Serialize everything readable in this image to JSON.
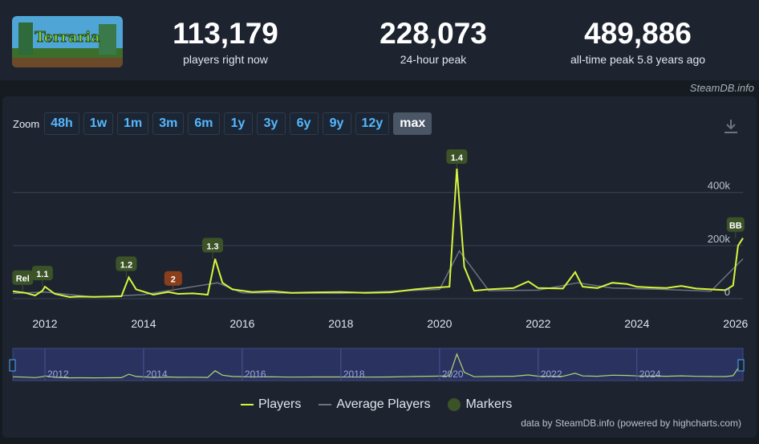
{
  "stats": [
    {
      "value": "113,179",
      "label": "players right now"
    },
    {
      "value": "228,073",
      "label": "24-hour peak"
    },
    {
      "value": "489,886",
      "label": "all-time peak 5.8 years ago"
    }
  ],
  "logo_text": "Terraria",
  "credit_top": "SteamDB.info",
  "zoom": {
    "label": "Zoom",
    "options": [
      "48h",
      "1w",
      "1m",
      "3m",
      "6m",
      "1y",
      "3y",
      "6y",
      "9y",
      "12y",
      "max"
    ],
    "active": "max"
  },
  "icons": {
    "download": "download-icon"
  },
  "colors": {
    "players": "#d7f53c",
    "average": "#6b7480",
    "marker": "#3c5327",
    "marker_alt": "#8a3f1a",
    "navigator_bg": "#2a3360"
  },
  "legend": [
    "Players",
    "Average Players",
    "Markers"
  ],
  "credit_bottom": "data by SteamDB.info (powered by highcharts.com)",
  "chart_data": {
    "type": "line",
    "x_ticks": [
      "2012",
      "2014",
      "2016",
      "2018",
      "2020",
      "2022",
      "2024",
      "2026"
    ],
    "y_ticks": [
      "0",
      "200k",
      "400k"
    ],
    "ylim": [
      0,
      489886
    ],
    "xlim": [
      2011.35,
      2026.15
    ],
    "series": [
      {
        "name": "Players",
        "points": [
          [
            2011.35,
            28000
          ],
          [
            2011.6,
            22000
          ],
          [
            2011.8,
            12000
          ],
          [
            2011.95,
            30000
          ],
          [
            2012.0,
            45000
          ],
          [
            2012.2,
            18000
          ],
          [
            2012.5,
            6000
          ],
          [
            2012.7,
            8000
          ],
          [
            2013.0,
            7000
          ],
          [
            2013.3,
            8000
          ],
          [
            2013.55,
            9000
          ],
          [
            2013.7,
            80000
          ],
          [
            2013.85,
            35000
          ],
          [
            2014.2,
            15000
          ],
          [
            2014.5,
            25000
          ],
          [
            2014.7,
            18000
          ],
          [
            2015.0,
            20000
          ],
          [
            2015.3,
            15000
          ],
          [
            2015.45,
            150000
          ],
          [
            2015.6,
            60000
          ],
          [
            2015.8,
            35000
          ],
          [
            2016.2,
            25000
          ],
          [
            2016.6,
            28000
          ],
          [
            2017.0,
            22000
          ],
          [
            2017.5,
            24000
          ],
          [
            2018.0,
            25000
          ],
          [
            2018.5,
            22000
          ],
          [
            2019.0,
            24000
          ],
          [
            2019.5,
            35000
          ],
          [
            2019.8,
            40000
          ],
          [
            2020.2,
            45000
          ],
          [
            2020.35,
            489886
          ],
          [
            2020.5,
            120000
          ],
          [
            2020.7,
            30000
          ],
          [
            2021.0,
            35000
          ],
          [
            2021.5,
            40000
          ],
          [
            2021.8,
            65000
          ],
          [
            2022.0,
            40000
          ],
          [
            2022.5,
            38000
          ],
          [
            2022.75,
            100000
          ],
          [
            2022.9,
            45000
          ],
          [
            2023.2,
            40000
          ],
          [
            2023.5,
            60000
          ],
          [
            2023.8,
            55000
          ],
          [
            2024.0,
            45000
          ],
          [
            2024.3,
            42000
          ],
          [
            2024.6,
            40000
          ],
          [
            2024.9,
            48000
          ],
          [
            2025.2,
            38000
          ],
          [
            2025.5,
            35000
          ],
          [
            2025.8,
            32000
          ],
          [
            2025.95,
            50000
          ],
          [
            2026.05,
            200000
          ],
          [
            2026.15,
            228073
          ]
        ]
      },
      {
        "name": "Average Players",
        "points": [
          [
            2011.35,
            20000
          ],
          [
            2012.0,
            25000
          ],
          [
            2013.0,
            6000
          ],
          [
            2014.0,
            15000
          ],
          [
            2015.5,
            60000
          ],
          [
            2016.0,
            22000
          ],
          [
            2018.0,
            20000
          ],
          [
            2020.0,
            35000
          ],
          [
            2020.4,
            180000
          ],
          [
            2021.0,
            30000
          ],
          [
            2022.0,
            32000
          ],
          [
            2022.8,
            60000
          ],
          [
            2023.5,
            40000
          ],
          [
            2024.5,
            35000
          ],
          [
            2025.5,
            28000
          ],
          [
            2026.15,
            150000
          ]
        ]
      }
    ],
    "markers": [
      {
        "label": "Rel",
        "x": 2011.55,
        "y": 28000,
        "style": "normal"
      },
      {
        "label": "1.1",
        "x": 2011.95,
        "y": 45000,
        "style": "normal"
      },
      {
        "label": "1.2",
        "x": 2013.65,
        "y": 80000,
        "style": "normal"
      },
      {
        "label": "2",
        "x": 2014.6,
        "y": 25000,
        "style": "alt"
      },
      {
        "label": "1.3",
        "x": 2015.4,
        "y": 150000,
        "style": "normal"
      },
      {
        "label": "1.4",
        "x": 2020.35,
        "y": 489886,
        "style": "normal"
      },
      {
        "label": "BB",
        "x": 2026.0,
        "y": 228073,
        "style": "normal"
      }
    ],
    "navigator_ticks": [
      "2012",
      "2014",
      "2016",
      "2018",
      "2020",
      "2022",
      "2024"
    ]
  }
}
